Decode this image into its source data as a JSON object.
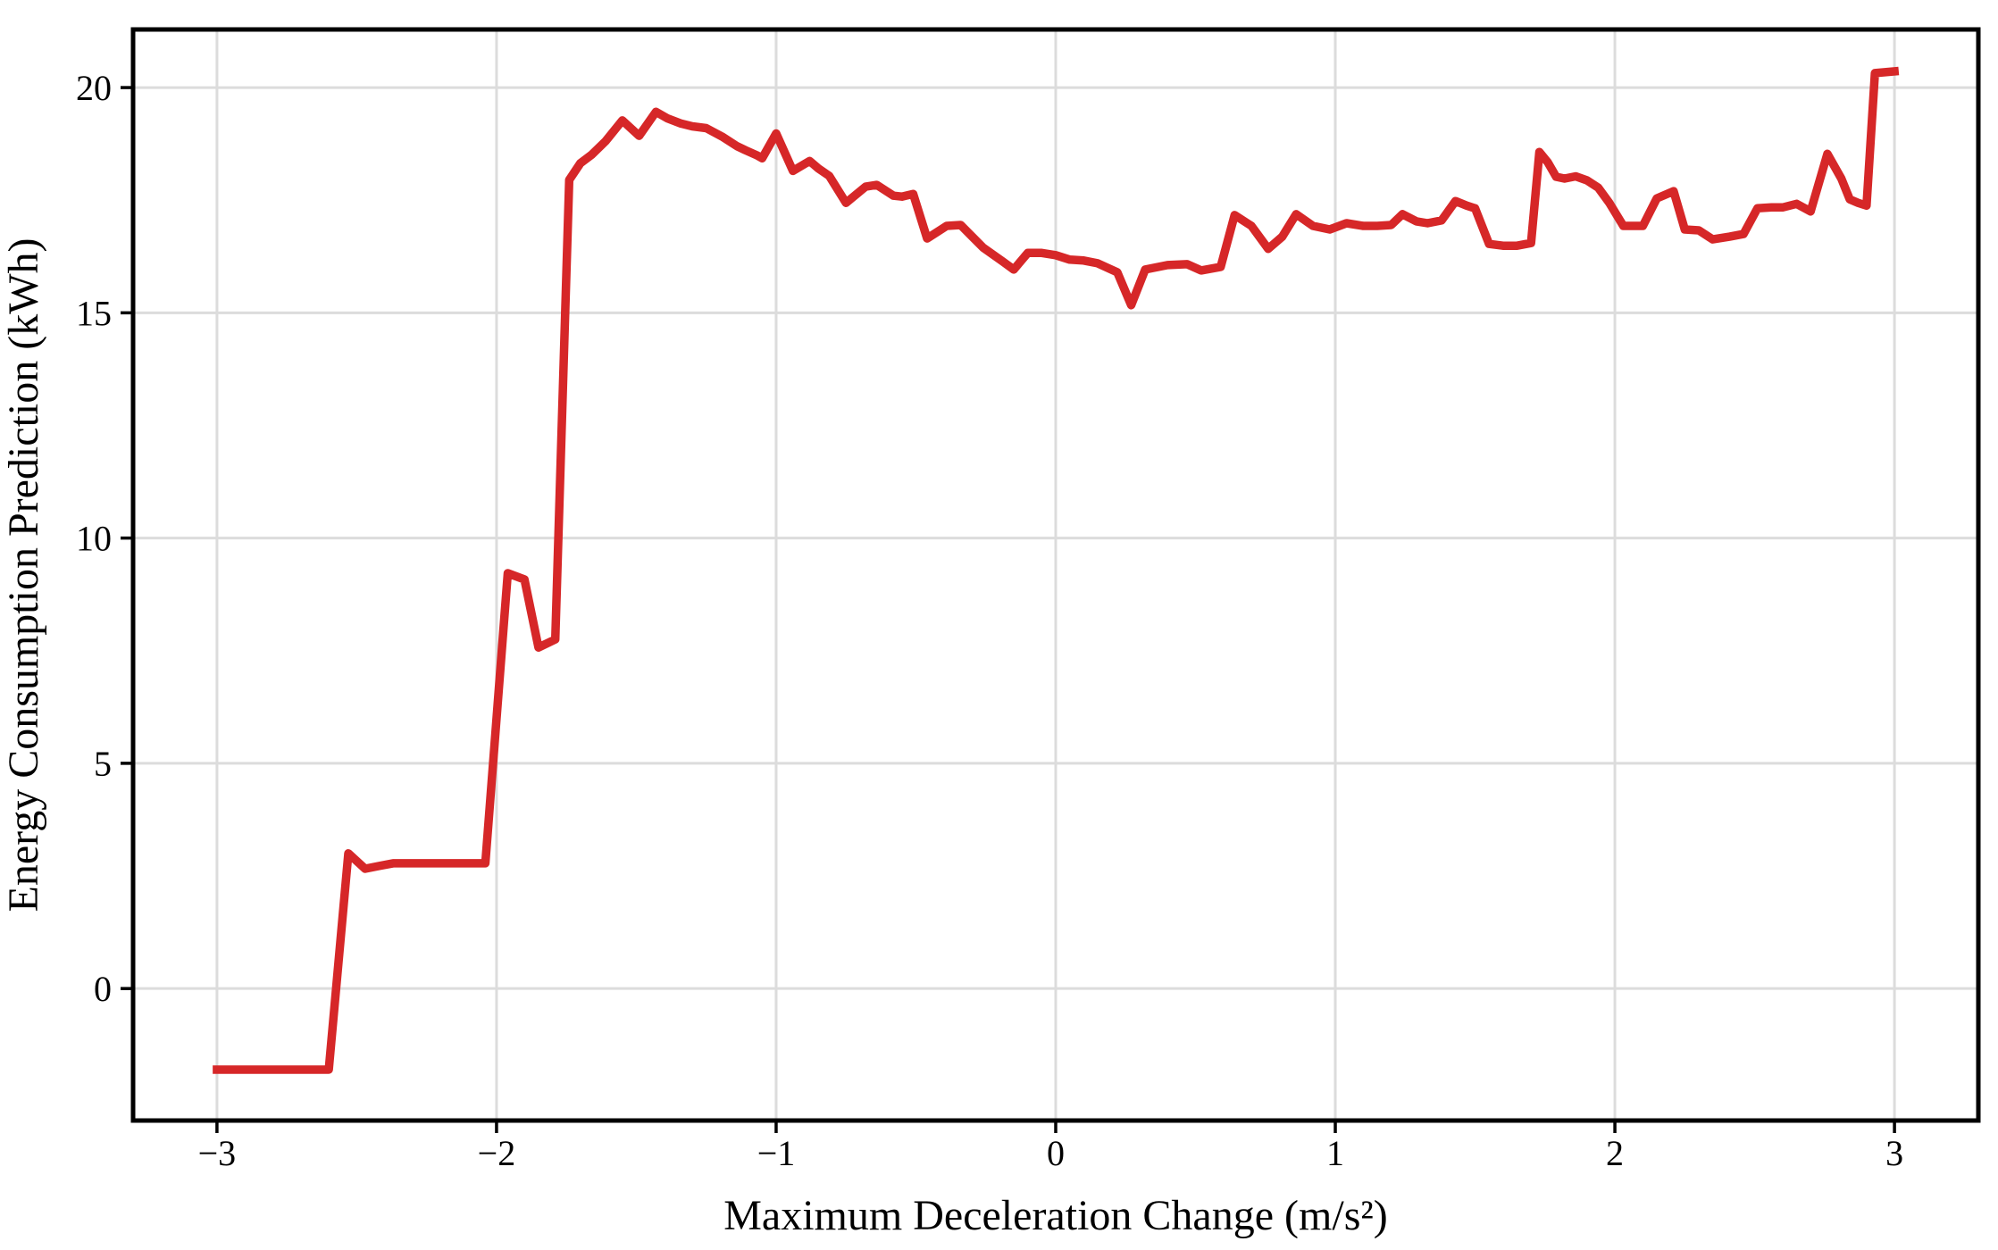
{
  "figure": {
    "background": "#ffffff"
  },
  "chart_data": {
    "type": "line",
    "title": "",
    "xlabel": "Maximum Deceleration Change (m/s²)",
    "ylabel": "Energy Consumption Prediction (kWh)",
    "xlim": [
      -3.3,
      3.3
    ],
    "ylim": [
      -2.93,
      21.29
    ],
    "grid": true,
    "legend_position": "none",
    "x_ticks": {
      "values": [
        -3,
        -2,
        -1,
        0,
        1,
        2,
        3
      ],
      "labels": [
        "−3",
        "−2",
        "−1",
        "0",
        "1",
        "2",
        "3"
      ]
    },
    "y_ticks": {
      "values": [
        0,
        5,
        10,
        15,
        20
      ],
      "labels": [
        "0",
        "5",
        "10",
        "15",
        "20"
      ]
    },
    "colors": {
      "line": "#d62728",
      "grid": "#dcdcdc",
      "spine": "#000000",
      "tick": "#000000",
      "background": "#ffffff"
    },
    "line_width": 9.5,
    "series": [
      {
        "name": "Energy Consumption Prediction",
        "color": "#d62728",
        "points": [
          [
            -3.0,
            -1.8
          ],
          [
            -2.9,
            -1.8
          ],
          [
            -2.8,
            -1.8
          ],
          [
            -2.7,
            -1.8
          ],
          [
            -2.6,
            -1.8
          ],
          [
            -2.53,
            3.0
          ],
          [
            -2.47,
            2.66
          ],
          [
            -2.42,
            2.72
          ],
          [
            -2.37,
            2.78
          ],
          [
            -2.3,
            2.78
          ],
          [
            -2.22,
            2.78
          ],
          [
            -2.16,
            2.78
          ],
          [
            -2.1,
            2.78
          ],
          [
            -2.04,
            2.78
          ],
          [
            -1.96,
            9.22
          ],
          [
            -1.9,
            9.08
          ],
          [
            -1.85,
            7.57
          ],
          [
            -1.79,
            7.75
          ],
          [
            -1.74,
            17.95
          ],
          [
            -1.7,
            18.32
          ],
          [
            -1.66,
            18.51
          ],
          [
            -1.61,
            18.81
          ],
          [
            -1.55,
            19.27
          ],
          [
            -1.49,
            18.93
          ],
          [
            -1.43,
            19.46
          ],
          [
            -1.39,
            19.32
          ],
          [
            -1.34,
            19.2
          ],
          [
            -1.3,
            19.14
          ],
          [
            -1.25,
            19.1
          ],
          [
            -1.19,
            18.9
          ],
          [
            -1.14,
            18.7
          ],
          [
            -1.11,
            18.61
          ],
          [
            -1.07,
            18.5
          ],
          [
            -1.05,
            18.43
          ],
          [
            -1.0,
            18.98
          ],
          [
            -0.94,
            18.15
          ],
          [
            -0.88,
            18.37
          ],
          [
            -0.85,
            18.21
          ],
          [
            -0.81,
            18.04
          ],
          [
            -0.75,
            17.44
          ],
          [
            -0.68,
            17.8
          ],
          [
            -0.64,
            17.84
          ],
          [
            -0.58,
            17.6
          ],
          [
            -0.55,
            17.58
          ],
          [
            -0.51,
            17.64
          ],
          [
            -0.46,
            16.65
          ],
          [
            -0.39,
            16.93
          ],
          [
            -0.34,
            16.95
          ],
          [
            -0.3,
            16.7
          ],
          [
            -0.26,
            16.45
          ],
          [
            -0.19,
            16.14
          ],
          [
            -0.15,
            15.96
          ],
          [
            -0.1,
            16.33
          ],
          [
            -0.05,
            16.33
          ],
          [
            0.0,
            16.28
          ],
          [
            0.05,
            16.18
          ],
          [
            0.1,
            16.16
          ],
          [
            0.15,
            16.1
          ],
          [
            0.22,
            15.9
          ],
          [
            0.27,
            15.17
          ],
          [
            0.32,
            15.96
          ],
          [
            0.4,
            16.06
          ],
          [
            0.47,
            16.08
          ],
          [
            0.52,
            15.94
          ],
          [
            0.59,
            16.02
          ],
          [
            0.64,
            17.17
          ],
          [
            0.7,
            16.93
          ],
          [
            0.76,
            16.42
          ],
          [
            0.81,
            16.69
          ],
          [
            0.86,
            17.19
          ],
          [
            0.92,
            16.93
          ],
          [
            0.98,
            16.85
          ],
          [
            1.04,
            16.99
          ],
          [
            1.1,
            16.93
          ],
          [
            1.15,
            16.93
          ],
          [
            1.2,
            16.95
          ],
          [
            1.24,
            17.19
          ],
          [
            1.29,
            17.03
          ],
          [
            1.33,
            16.99
          ],
          [
            1.38,
            17.05
          ],
          [
            1.43,
            17.48
          ],
          [
            1.47,
            17.38
          ],
          [
            1.5,
            17.32
          ],
          [
            1.55,
            16.53
          ],
          [
            1.6,
            16.49
          ],
          [
            1.65,
            16.49
          ],
          [
            1.7,
            16.55
          ],
          [
            1.73,
            18.57
          ],
          [
            1.76,
            18.34
          ],
          [
            1.79,
            18.02
          ],
          [
            1.82,
            17.98
          ],
          [
            1.86,
            18.03
          ],
          [
            1.9,
            17.94
          ],
          [
            1.94,
            17.78
          ],
          [
            1.98,
            17.44
          ],
          [
            2.03,
            16.93
          ],
          [
            2.1,
            16.93
          ],
          [
            2.15,
            17.54
          ],
          [
            2.21,
            17.7
          ],
          [
            2.25,
            16.85
          ],
          [
            2.3,
            16.83
          ],
          [
            2.35,
            16.63
          ],
          [
            2.41,
            16.69
          ],
          [
            2.46,
            16.75
          ],
          [
            2.51,
            17.32
          ],
          [
            2.56,
            17.34
          ],
          [
            2.6,
            17.34
          ],
          [
            2.65,
            17.42
          ],
          [
            2.7,
            17.25
          ],
          [
            2.76,
            18.53
          ],
          [
            2.81,
            17.98
          ],
          [
            2.84,
            17.52
          ],
          [
            2.87,
            17.44
          ],
          [
            2.9,
            17.38
          ],
          [
            2.93,
            20.32
          ],
          [
            3.0,
            20.36
          ]
        ]
      }
    ]
  }
}
